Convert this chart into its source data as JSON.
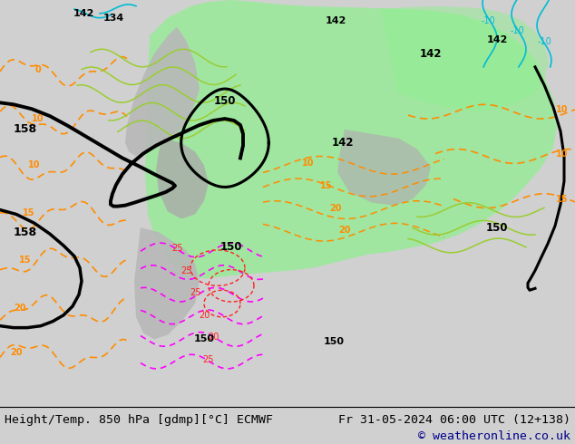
{
  "title_left": "Height/Temp. 850 hPa [gdmp][°C] ECMWF",
  "title_right": "Fr 31-05-2024 06:00 UTC (12+138)",
  "copyright": "© weatheronline.co.uk",
  "bg_color": "#d0d0d0",
  "map_bg": "#c8c8c8",
  "bottom_bar_color": "#ffffff",
  "bottom_text_color": "#000000",
  "copyright_color": "#00008b",
  "figsize": [
    6.34,
    4.9
  ],
  "dpi": 100,
  "green_color": "#90ee90",
  "orange_color": "#ff8c00",
  "cyan_color": "#00bcd4",
  "red_color": "#ff2020",
  "magenta_color": "#ff00ff",
  "yellow_green": "#9acd32",
  "black_contour": "#000000"
}
